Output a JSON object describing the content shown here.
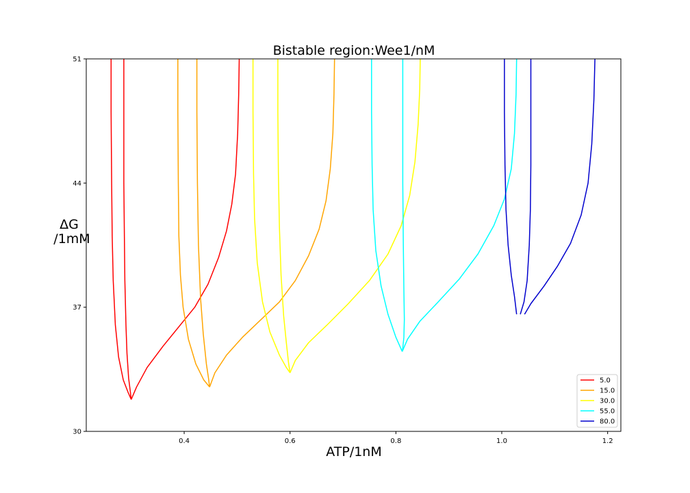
{
  "chart_data": {
    "type": "line",
    "title": "Bistable region:Wee1/nM",
    "xlabel": "ATP/1nM",
    "ylabel_line1": "ΔG",
    "ylabel_line2": "/1mM",
    "xlim": [
      0.215,
      1.225
    ],
    "ylim": [
      30,
      51
    ],
    "xticks": [
      {
        "value": 0.4,
        "label": "0.4"
      },
      {
        "value": 0.6,
        "label": "0.6"
      },
      {
        "value": 0.8,
        "label": "0.8"
      },
      {
        "value": 1.0,
        "label": "1.0"
      },
      {
        "value": 1.2,
        "label": "1.2"
      }
    ],
    "yticks": [
      {
        "value": 30,
        "label": "30"
      },
      {
        "value": 37,
        "label": "37"
      },
      {
        "value": 44,
        "label": "44"
      },
      {
        "value": 51,
        "label": "51"
      }
    ],
    "grid": false,
    "legend_position": "bottom-right",
    "series": [
      {
        "name": "5.0",
        "color": "#ff0000",
        "segments": [
          [
            [
              0.262,
              51
            ],
            [
              0.262,
              48
            ],
            [
              0.263,
              44
            ],
            [
              0.264,
              41
            ],
            [
              0.266,
              38.5
            ],
            [
              0.27,
              36
            ],
            [
              0.276,
              34.2
            ],
            [
              0.285,
              32.9
            ],
            [
              0.294,
              32.2
            ],
            [
              0.3,
              31.8
            ]
          ],
          [
            [
              0.286,
              51
            ],
            [
              0.286,
              48
            ],
            [
              0.286,
              44
            ],
            [
              0.287,
              41
            ],
            [
              0.288,
              38.5
            ],
            [
              0.29,
              36
            ],
            [
              0.292,
              34.4
            ],
            [
              0.295,
              33
            ],
            [
              0.298,
              32.3
            ],
            [
              0.3,
              31.8
            ]
          ],
          [
            [
              0.3,
              31.8
            ],
            [
              0.31,
              32.5
            ],
            [
              0.33,
              33.6
            ],
            [
              0.36,
              34.8
            ],
            [
              0.39,
              35.9
            ],
            [
              0.42,
              37.0
            ],
            [
              0.445,
              38.3
            ],
            [
              0.465,
              39.8
            ],
            [
              0.48,
              41.3
            ],
            [
              0.49,
              42.8
            ],
            [
              0.497,
              44.5
            ],
            [
              0.501,
              46.8
            ],
            [
              0.503,
              49
            ],
            [
              0.504,
              51
            ]
          ]
        ]
      },
      {
        "name": "15.0",
        "color": "#ffa500",
        "segments": [
          [
            [
              0.388,
              51
            ],
            [
              0.388,
              48
            ],
            [
              0.389,
              44
            ],
            [
              0.39,
              41
            ],
            [
              0.393,
              38.8
            ],
            [
              0.398,
              37
            ],
            [
              0.408,
              35.2
            ],
            [
              0.422,
              33.8
            ],
            [
              0.437,
              32.9
            ],
            [
              0.448,
              32.5
            ]
          ],
          [
            [
              0.424,
              51
            ],
            [
              0.424,
              48
            ],
            [
              0.425,
              44
            ],
            [
              0.427,
              40.5
            ],
            [
              0.431,
              37.5
            ],
            [
              0.436,
              35.5
            ],
            [
              0.442,
              33.8
            ],
            [
              0.446,
              33
            ],
            [
              0.448,
              32.5
            ]
          ],
          [
            [
              0.448,
              32.5
            ],
            [
              0.458,
              33.3
            ],
            [
              0.48,
              34.3
            ],
            [
              0.51,
              35.3
            ],
            [
              0.545,
              36.3
            ],
            [
              0.58,
              37.3
            ],
            [
              0.61,
              38.5
            ],
            [
              0.635,
              39.9
            ],
            [
              0.655,
              41.4
            ],
            [
              0.668,
              43
            ],
            [
              0.676,
              44.8
            ],
            [
              0.681,
              46.8
            ],
            [
              0.683,
              49
            ],
            [
              0.684,
              51
            ]
          ]
        ]
      },
      {
        "name": "30.0",
        "color": "#ffff00",
        "segments": [
          [
            [
              0.53,
              51
            ],
            [
              0.53,
              48
            ],
            [
              0.531,
              44.5
            ],
            [
              0.533,
              42
            ],
            [
              0.538,
              39.5
            ],
            [
              0.548,
              37.3
            ],
            [
              0.562,
              35.6
            ],
            [
              0.58,
              34.3
            ],
            [
              0.593,
              33.6
            ],
            [
              0.6,
              33.3
            ]
          ],
          [
            [
              0.577,
              51
            ],
            [
              0.577,
              48
            ],
            [
              0.578,
              44.5
            ],
            [
              0.58,
              41.5
            ],
            [
              0.583,
              38.8
            ],
            [
              0.588,
              36.5
            ],
            [
              0.593,
              35
            ],
            [
              0.597,
              33.9
            ],
            [
              0.6,
              33.3
            ]
          ],
          [
            [
              0.6,
              33.3
            ],
            [
              0.61,
              34.0
            ],
            [
              0.635,
              35.0
            ],
            [
              0.67,
              36.0
            ],
            [
              0.71,
              37.2
            ],
            [
              0.75,
              38.5
            ],
            [
              0.785,
              40.0
            ],
            [
              0.81,
              41.6
            ],
            [
              0.826,
              43.3
            ],
            [
              0.836,
              45.2
            ],
            [
              0.842,
              47.3
            ],
            [
              0.845,
              49.3
            ],
            [
              0.846,
              51
            ]
          ]
        ]
      },
      {
        "name": "55.0",
        "color": "#00ffff",
        "segments": [
          [
            [
              0.754,
              51
            ],
            [
              0.754,
              48
            ],
            [
              0.755,
              45
            ],
            [
              0.757,
              42.5
            ],
            [
              0.762,
              40.2
            ],
            [
              0.772,
              38.2
            ],
            [
              0.785,
              36.6
            ],
            [
              0.8,
              35.3
            ],
            [
              0.809,
              34.7
            ],
            [
              0.812,
              34.5
            ]
          ],
          [
            [
              0.813,
              51
            ],
            [
              0.813,
              48
            ],
            [
              0.813,
              44
            ],
            [
              0.814,
              40.5
            ],
            [
              0.815,
              38
            ],
            [
              0.816,
              36.3
            ],
            [
              0.815,
              35.3
            ],
            [
              0.813,
              34.7
            ],
            [
              0.812,
              34.5
            ]
          ],
          [
            [
              0.812,
              34.5
            ],
            [
              0.822,
              35.2
            ],
            [
              0.845,
              36.2
            ],
            [
              0.88,
              37.3
            ],
            [
              0.92,
              38.6
            ],
            [
              0.955,
              40.0
            ],
            [
              0.985,
              41.6
            ],
            [
              1.005,
              43.1
            ],
            [
              1.018,
              44.8
            ],
            [
              1.024,
              46.8
            ],
            [
              1.027,
              49
            ],
            [
              1.028,
              51
            ]
          ]
        ]
      },
      {
        "name": "80.0",
        "color": "#0000cd",
        "segments": [
          [
            [
              1.005,
              51
            ],
            [
              1.005,
              48
            ],
            [
              1.006,
              45
            ],
            [
              1.008,
              42.5
            ],
            [
              1.012,
              40.5
            ],
            [
              1.018,
              38.8
            ],
            [
              1.024,
              37.6
            ],
            [
              1.028,
              36.6
            ]
          ],
          [
            [
              1.055,
              51
            ],
            [
              1.055,
              48
            ],
            [
              1.055,
              45
            ],
            [
              1.054,
              42.5
            ],
            [
              1.052,
              40.5
            ],
            [
              1.048,
              38.5
            ],
            [
              1.042,
              37.3
            ],
            [
              1.035,
              36.6
            ]
          ],
          [
            [
              1.043,
              36.6
            ],
            [
              1.055,
              37.2
            ],
            [
              1.08,
              38.2
            ],
            [
              1.105,
              39.3
            ],
            [
              1.13,
              40.6
            ],
            [
              1.15,
              42.2
            ],
            [
              1.163,
              44
            ],
            [
              1.17,
              46.2
            ],
            [
              1.174,
              48.7
            ],
            [
              1.176,
              51
            ]
          ]
        ]
      }
    ]
  }
}
